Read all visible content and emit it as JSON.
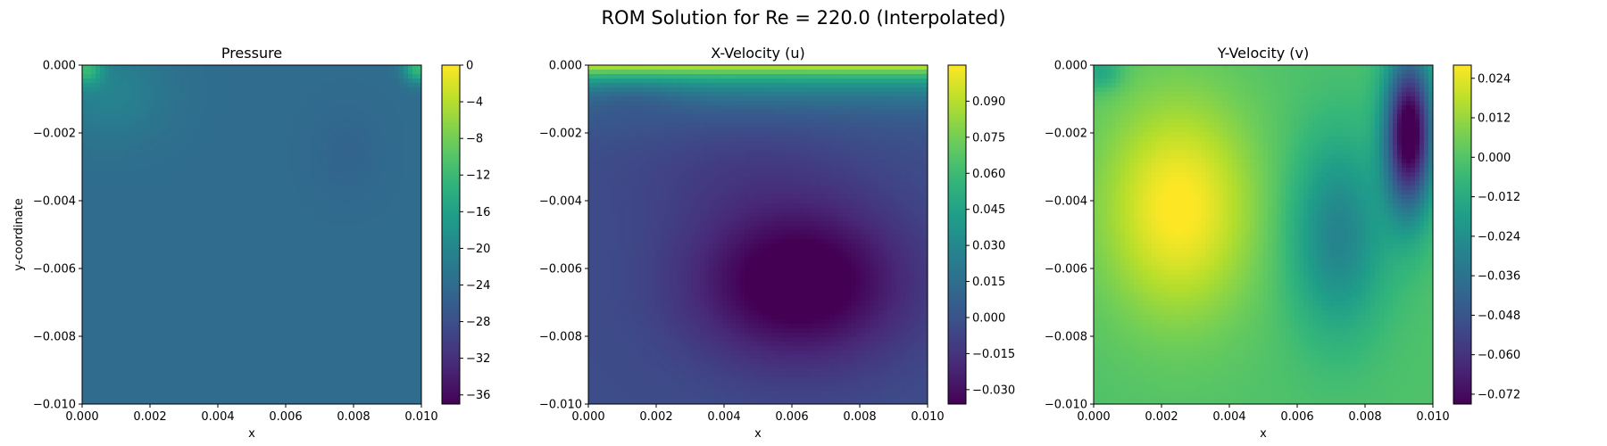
{
  "chart_data": [
    {
      "type": "heatmap",
      "suptitle": "ROM Solution for Re = 220.0 (Interpolated)",
      "title": "Pressure",
      "xlabel": "x",
      "ylabel": "y-coordinate",
      "xlim": [
        0.0,
        0.01
      ],
      "ylim": [
        -0.01,
        0.0
      ],
      "xticks": [
        "0.000",
        "0.002",
        "0.004",
        "0.006",
        "0.008",
        "0.010"
      ],
      "yticks": [
        "0.000",
        "−0.002",
        "−0.004",
        "−0.006",
        "−0.008",
        "−0.010"
      ],
      "colormap": "viridis",
      "colorbar": {
        "range": [
          -37,
          0
        ],
        "ticks": [
          0,
          -4,
          -8,
          -12,
          -16,
          -20,
          -24,
          -28,
          -32,
          -36
        ],
        "tick_labels": [
          "0",
          "−4",
          "−8",
          "−12",
          "−16",
          "−20",
          "−24",
          "−28",
          "−32",
          "−36"
        ]
      },
      "field_description": "Nearly uniform pressure around -24 with slightly higher values near the upper-left and upper-right corners"
    },
    {
      "type": "heatmap",
      "title": "X-Velocity (u)",
      "xlabel": "x",
      "xlim": [
        0.0,
        0.01
      ],
      "ylim": [
        -0.01,
        0.0
      ],
      "xticks": [
        "0.000",
        "0.002",
        "0.004",
        "0.006",
        "0.008",
        "0.010"
      ],
      "yticks": [
        "0.000",
        "−0.002",
        "−0.004",
        "−0.006",
        "−0.008",
        "−0.010"
      ],
      "colormap": "viridis",
      "colorbar": {
        "range": [
          -0.036,
          0.105
        ],
        "ticks": [
          0.09,
          0.075,
          0.06,
          0.045,
          0.03,
          0.015,
          0.0,
          -0.015,
          -0.03
        ],
        "tick_labels": [
          "0.090",
          "0.075",
          "0.060",
          "0.045",
          "0.030",
          "0.015",
          "0.000",
          "−0.015",
          "−0.030"
        ]
      },
      "field_description": "Strong positive velocity along the top lid, minimum around (0.006, -0.0063)"
    },
    {
      "type": "heatmap",
      "title": "Y-Velocity (v)",
      "xlabel": "x",
      "xlim": [
        0.0,
        0.01
      ],
      "ylim": [
        -0.01,
        0.0
      ],
      "xticks": [
        "0.000",
        "0.002",
        "0.004",
        "0.006",
        "0.008",
        "0.010"
      ],
      "yticks": [
        "0.000",
        "−0.002",
        "−0.004",
        "−0.006",
        "−0.008",
        "−0.010"
      ],
      "colormap": "viridis",
      "colorbar": {
        "range": [
          -0.075,
          0.028
        ],
        "ticks": [
          0.024,
          0.012,
          0.0,
          -0.012,
          -0.024,
          -0.036,
          -0.048,
          -0.06,
          -0.072
        ],
        "tick_labels": [
          "0.024",
          "0.012",
          "0.000",
          "−0.012",
          "−0.024",
          "−0.036",
          "−0.048",
          "−0.060",
          "−0.072"
        ]
      },
      "field_description": "Positive maximum near (0.0025, -0.0042), strong negative streak along the right wall near (0.0092, -0.002)"
    }
  ]
}
